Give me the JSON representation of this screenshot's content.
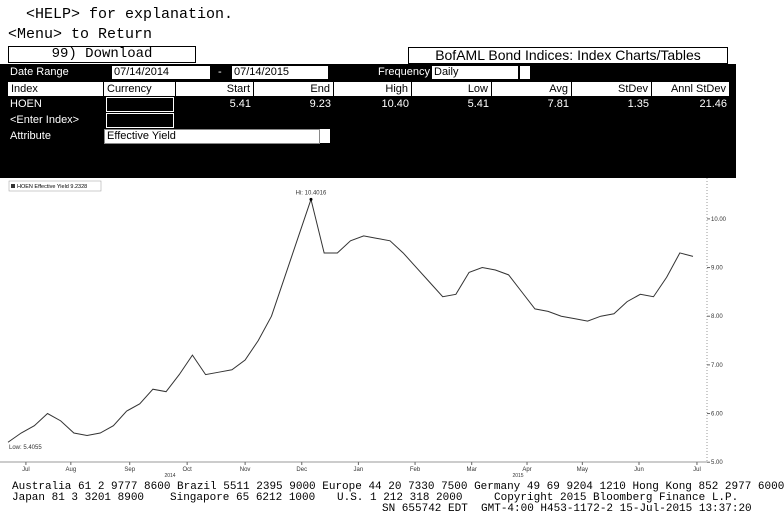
{
  "header": {
    "help": "<HELP> for explanation.",
    "menu": "<Menu> to Return",
    "download": "99) Download",
    "title": "BofAML Bond Indices: Index Charts/Tables"
  },
  "form": {
    "date_range_label": "Date Range",
    "start_date": "07/14/2014",
    "separator": "-",
    "end_date": "07/14/2015",
    "frequency_label": "Frequency",
    "frequency": "Daily",
    "attribute_label": "Attribute",
    "attribute": "Effective Yield"
  },
  "table": {
    "columns": [
      "Index",
      "Currency",
      "Start",
      "End",
      "High",
      "Low",
      "Avg",
      "StDev",
      "Annl StDev"
    ],
    "row": {
      "index": "HOEN",
      "start": "5.41",
      "end": "9.23",
      "high": "10.40",
      "low": "5.41",
      "avg": "7.81",
      "stdev": "1.35",
      "annl_stdev": "21.46"
    },
    "enter_index": "<Enter Index>"
  },
  "chart_data": {
    "type": "line",
    "series": [
      {
        "name": "HOEN Effective Yield 9.2328",
        "color": "#333333",
        "values": [
          5.41,
          5.6,
          5.75,
          6.0,
          5.85,
          5.6,
          5.55,
          5.6,
          5.75,
          6.05,
          6.2,
          6.5,
          6.45,
          6.8,
          7.2,
          6.8,
          6.85,
          6.9,
          7.1,
          7.5,
          8.0,
          8.8,
          9.6,
          10.4,
          9.3,
          9.3,
          9.55,
          9.65,
          9.6,
          9.55,
          9.3,
          9.0,
          8.7,
          8.4,
          8.45,
          8.9,
          9.0,
          8.95,
          8.85,
          8.5,
          8.15,
          8.1,
          8.0,
          7.95,
          7.9,
          8.0,
          8.05,
          8.3,
          8.45,
          8.4,
          8.8,
          9.3,
          9.23
        ]
      }
    ],
    "xlim": [
      0,
      52
    ],
    "xticks": [
      {
        "value": 1.36,
        "label": "Jul"
      },
      {
        "value": 4.77,
        "label": "Aug"
      },
      {
        "value": 9.24,
        "label": "Sep"
      },
      {
        "value": 13.6,
        "label": "Oct"
      },
      {
        "value": 18.0,
        "label": "Nov"
      },
      {
        "value": 22.3,
        "label": "Dec"
      },
      {
        "value": 26.6,
        "label": "Jan"
      },
      {
        "value": 30.9,
        "label": "Feb"
      },
      {
        "value": 35.2,
        "label": "Mar"
      },
      {
        "value": 39.4,
        "label": "Apr"
      },
      {
        "value": 43.6,
        "label": "May"
      },
      {
        "value": 47.9,
        "label": "Jun"
      },
      {
        "value": 52.3,
        "label": "Jul"
      }
    ],
    "ylim": [
      4.84,
      10.84
    ],
    "yticks": [
      {
        "value": 5,
        "label": "5.00"
      },
      {
        "value": 6,
        "label": "6.00"
      },
      {
        "value": 7,
        "label": "7.00"
      },
      {
        "value": 8,
        "label": "8.00"
      },
      {
        "value": 9,
        "label": "9.00"
      },
      {
        "value": 10,
        "label": "10.00"
      }
    ],
    "year_labels": [
      "2014",
      "2015"
    ],
    "annotations": [
      "Hi: 10.4016",
      "Low: 5.4055"
    ]
  },
  "footer": {
    "lines": [
      [
        "Australia 61 2 9777 8600 Brazil 5511 2395 9000 Europe 44 20 7330 7500 Germany 49 69 9204 1210 Hong Kong 852 2977 6000"
      ],
      [
        "Japan 81 3 3201 8900",
        "Singapore 65 6212 1000",
        "U.S. 1 212 318 2000",
        "Copyright 2015 Bloomberg Finance L.P."
      ],
      [
        "SN 655742 EDT  GMT-4:00 H453-1172-2 15-Jul-2015 13:37:20"
      ]
    ]
  }
}
